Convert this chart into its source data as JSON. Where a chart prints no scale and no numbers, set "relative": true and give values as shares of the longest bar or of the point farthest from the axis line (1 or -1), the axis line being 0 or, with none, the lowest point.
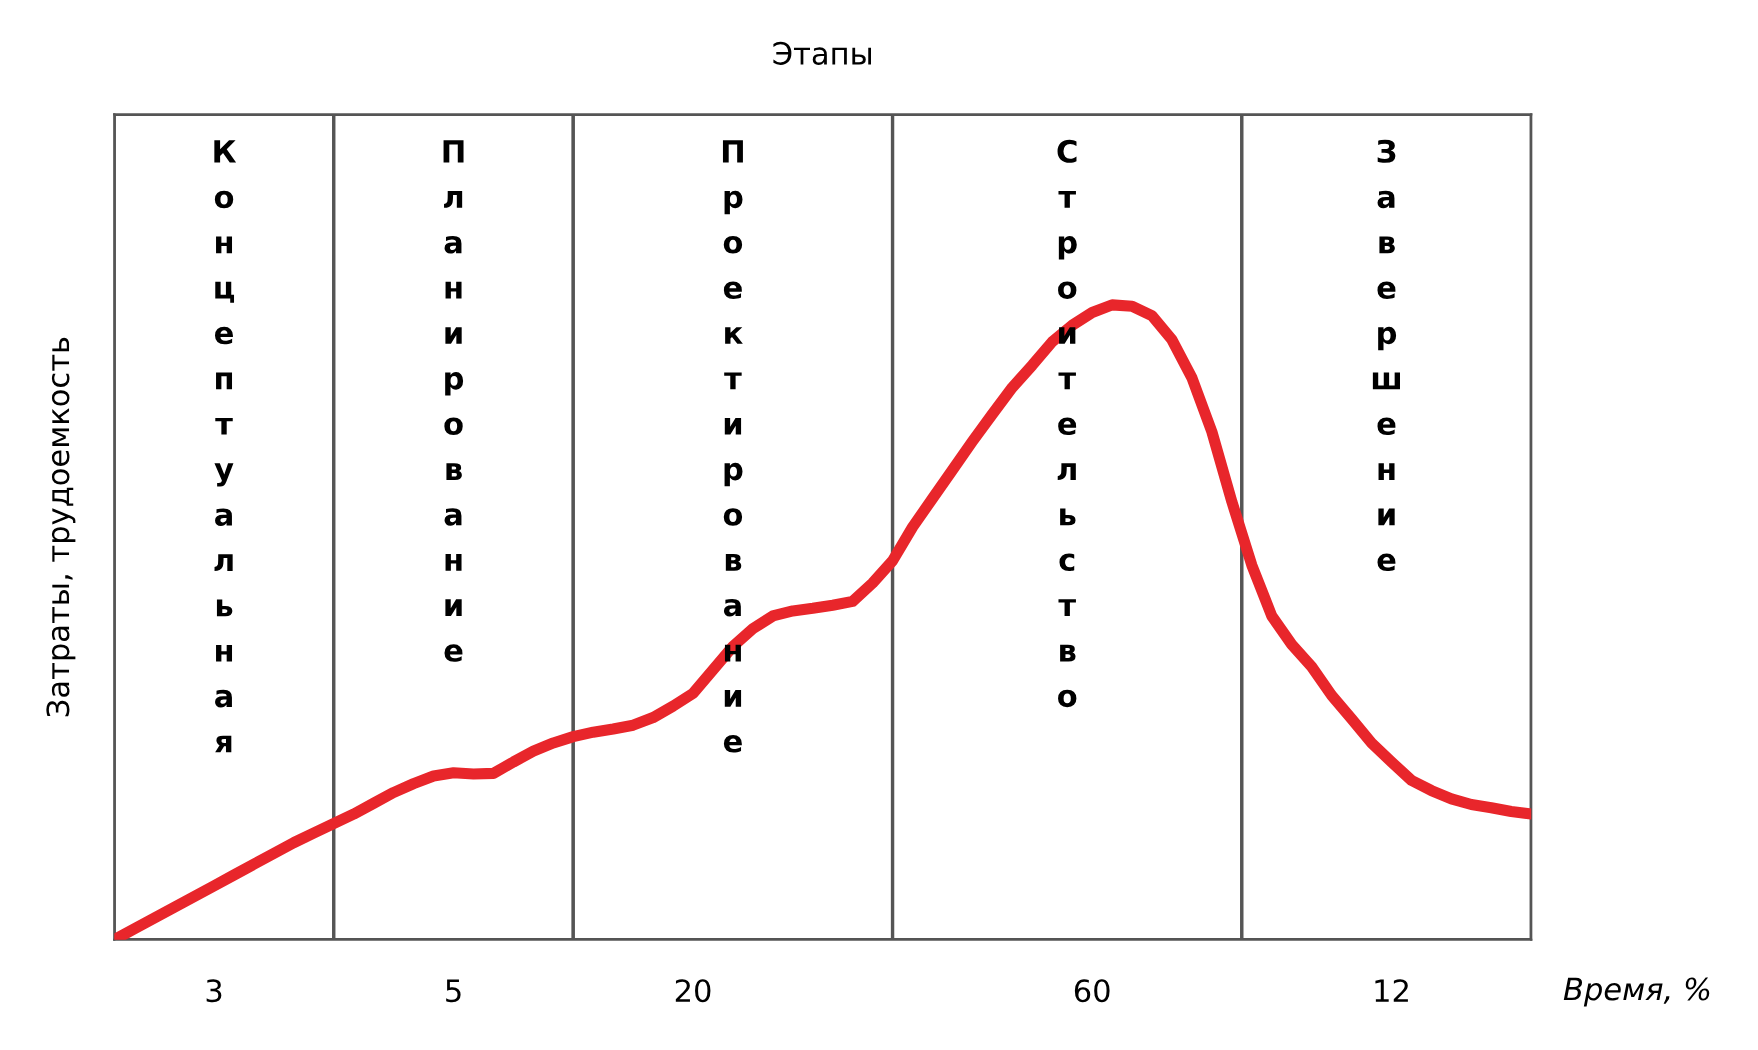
{
  "chart_data": {
    "type": "line",
    "title": "Этапы",
    "xlabel": "Время, %",
    "ylabel": "Затраты, трудоемкость",
    "relative": true,
    "categories": [
      null,
      null,
      null,
      null,
      null,
      "3",
      null,
      null,
      null,
      null,
      null,
      null,
      null,
      null,
      null,
      null,
      null,
      "5",
      null,
      null,
      null,
      null,
      null,
      null,
      null,
      null,
      null,
      null,
      null,
      "20",
      null,
      null,
      null,
      null,
      null,
      null,
      null,
      null,
      null,
      null,
      null,
      null,
      null,
      null,
      null,
      null,
      null,
      null,
      null,
      "60",
      null,
      null,
      null,
      null,
      null,
      null,
      null,
      null,
      null,
      null,
      null,
      null,
      null,
      null,
      "12",
      null,
      null,
      null,
      null,
      null,
      null,
      null
    ],
    "series": [
      {
        "color": "#e8262b",
        "values": [
          0,
          0.017,
          0.034,
          0.051,
          0.068,
          0.085,
          0.102,
          0.119,
          0.136,
          0.153,
          0.168,
          0.183,
          0.198,
          0.215,
          0.232,
          0.246,
          0.258,
          0.263,
          0.261,
          0.262,
          0.28,
          0.297,
          0.31,
          0.32,
          0.327,
          0.332,
          0.338,
          0.35,
          0.368,
          0.388,
          0.425,
          0.462,
          0.49,
          0.51,
          0.518,
          0.522,
          0.527,
          0.533,
          0.562,
          0.597,
          0.65,
          0.695,
          0.74,
          0.785,
          0.828,
          0.87,
          0.905,
          0.942,
          0.968,
          0.988,
          1,
          0.998,
          0.983,
          0.945,
          0.885,
          0.8,
          0.69,
          0.59,
          0.51,
          0.465,
          0.43,
          0.385,
          0.348,
          0.31,
          0.28,
          0.251,
          0.235,
          0.222,
          0.213,
          0.208,
          0.202,
          0.198
        ]
      }
    ],
    "annotations": [
      "Концептуальная",
      "Планирование",
      "Проектирование",
      "Строительство",
      "Завершение"
    ],
    "line_style": "solid",
    "marker": "none",
    "grid": false,
    "legend": false
  }
}
